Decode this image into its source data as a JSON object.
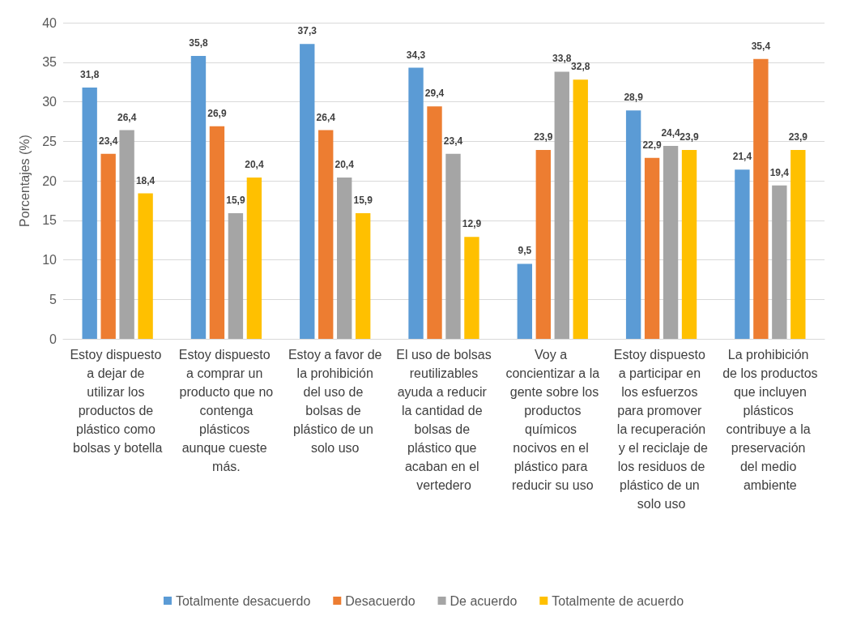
{
  "chart_data": {
    "type": "bar",
    "ylabel": "Porcentajes (%)",
    "categories": [
      "Estoy dispuesto a dejar de utilizar los productos de plástico como bolsas y botella",
      "Estoy dispuesto a comprar un producto que no contenga plásticos aunque cueste más.",
      "Estoy a favor de la prohibición del uso de bolsas de plástico de un solo uso",
      "El uso de bolsas reutilizables ayuda a reducir la cantidad de bolsas de plástico que acaban en el vertedero",
      "Voy a concientizar a la gente sobre los productos químicos nocivos en el plástico para reducir su uso",
      "Estoy dispuesto a participar en los esfuerzos para promover la recuperación y el reciclaje de los residuos de plástico de un solo uso",
      "La prohibición de los productos que incluyen plásticos contribuye a la preservación del medio ambiente"
    ],
    "series": [
      {
        "name": "Totalmente desacuerdo",
        "color": "#5b9bd5",
        "values": [
          31.8,
          35.8,
          37.3,
          34.3,
          9.5,
          28.9,
          21.4
        ],
        "value_labels": [
          "31,8",
          "35,8",
          "37,3",
          "34,3",
          "9,5",
          "28,9",
          "21,4"
        ]
      },
      {
        "name": "Desacuerdo",
        "color": "#ed7d31",
        "values": [
          23.4,
          26.9,
          26.4,
          29.4,
          23.9,
          22.9,
          35.4
        ],
        "value_labels": [
          "23,4",
          "26,9",
          "26,4",
          "29,4",
          "23,9",
          "22,9",
          "35,4"
        ]
      },
      {
        "name": "De acuerdo",
        "color": "#a5a5a5",
        "values": [
          26.4,
          15.9,
          20.4,
          23.4,
          33.8,
          24.4,
          19.4
        ],
        "value_labels": [
          "26,4",
          "15,9",
          "20,4",
          "23,4",
          "33,8",
          "24,4",
          "19,4"
        ]
      },
      {
        "name": "Totalmente de acuerdo",
        "color": "#ffc000",
        "values": [
          18.4,
          20.4,
          15.9,
          12.9,
          32.8,
          23.9,
          23.9
        ],
        "value_labels": [
          "18,4",
          "20,4",
          "15,9",
          "12,9",
          "32,8",
          "23,9",
          "23,9"
        ]
      }
    ],
    "ylim": [
      0,
      40
    ],
    "yticks": [
      0,
      5,
      10,
      15,
      20,
      25,
      30,
      35,
      40
    ],
    "grid": "y",
    "legend": "bottom"
  }
}
